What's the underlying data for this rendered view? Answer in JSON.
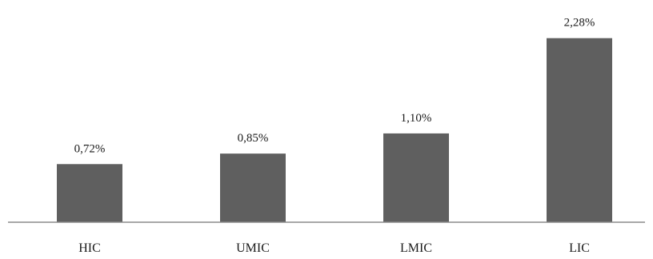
{
  "chart_data": {
    "type": "bar",
    "categories": [
      "HIC",
      "UMIC",
      "LMIC",
      "LIC"
    ],
    "values": [
      0.72,
      0.85,
      1.1,
      2.28
    ],
    "data_labels": [
      "0,72%",
      "0,85%",
      "1,10%",
      "2,28%"
    ],
    "title": "",
    "xlabel": "",
    "ylabel": "",
    "ylim": [
      0,
      2.35
    ],
    "grid": false,
    "legend": "none",
    "colors": {
      "bar": "#5f5f5f",
      "axis": "#8c8c8c",
      "text": "#1a1a1a"
    }
  }
}
